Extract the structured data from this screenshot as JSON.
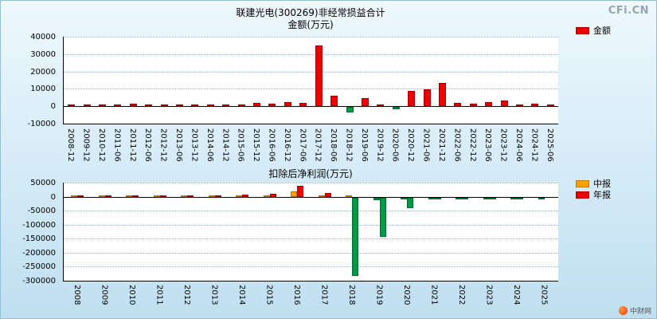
{
  "page": {
    "watermark": "CFi.CN",
    "footer_logo_text": "中财网"
  },
  "chart_data": [
    {
      "type": "bar",
      "title": "联建光电(300269)非经常损益合计",
      "subtitle": "金额(万元)",
      "categories": [
        "2008-12",
        "2009-12",
        "2010-12",
        "2011-06",
        "2011-12",
        "2012-06",
        "2012-12",
        "2013-06",
        "2013-12",
        "2014-06",
        "2014-12",
        "2015-06",
        "2015-12",
        "2016-06",
        "2016-12",
        "2017-06",
        "2017-12",
        "2018-06",
        "2018-12",
        "2019-06",
        "2019-12",
        "2020-06",
        "2020-12",
        "2021-06",
        "2021-12",
        "2022-06",
        "2022-12",
        "2023-06",
        "2023-12",
        "2024-06",
        "2024-12",
        "2025-06"
      ],
      "series": [
        {
          "name": "金额",
          "color": "#ee0000",
          "values": [
            700,
            800,
            950,
            700,
            1300,
            750,
            1100,
            650,
            950,
            750,
            1150,
            950,
            1900,
            1450,
            2400,
            1750,
            35000,
            5900,
            -3200,
            4500,
            950,
            -1400,
            9000,
            9700,
            13600,
            1850,
            1500,
            2300,
            3100,
            450,
            1600,
            950
          ]
        }
      ],
      "negative_color": "#009944",
      "ylim": [
        -10000,
        40000
      ],
      "yticks": [
        40000,
        30000,
        20000,
        10000,
        0,
        -10000
      ],
      "xlabel": "",
      "ylabel": "万元",
      "grid": true,
      "legend_position": "right"
    },
    {
      "type": "bar",
      "title": "扣除后净利润(万元)",
      "subtitle": "",
      "categories": [
        "2008",
        "2009",
        "2010",
        "2011",
        "2012",
        "2013",
        "2014",
        "2015",
        "2016",
        "2017",
        "2018",
        "2019",
        "2020",
        "2021",
        "2022",
        "2023",
        "2024",
        "2025"
      ],
      "series": [
        {
          "name": "中报",
          "color": "#ffa200",
          "values": [
            400,
            600,
            800,
            1000,
            1200,
            1600,
            2200,
            3200,
            20000,
            5000,
            2800,
            -10000,
            -8000,
            -2500,
            -1800,
            -1400,
            -1100,
            -1600
          ]
        },
        {
          "name": "年报",
          "color": "#ee0000",
          "values": [
            2000,
            2600,
            3200,
            3800,
            4400,
            5200,
            6500,
            9000,
            38000,
            14000,
            -281000,
            -141000,
            -37000,
            -5200,
            -4300,
            -3200,
            -2600,
            null
          ]
        }
      ],
      "negative_color": "#009944",
      "ylim": [
        -300000,
        50000
      ],
      "yticks": [
        50000,
        0,
        -50000,
        -100000,
        -150000,
        -200000,
        -250000,
        -300000
      ],
      "xlabel": "",
      "ylabel": "万元",
      "grid": true,
      "legend_position": "right"
    }
  ]
}
